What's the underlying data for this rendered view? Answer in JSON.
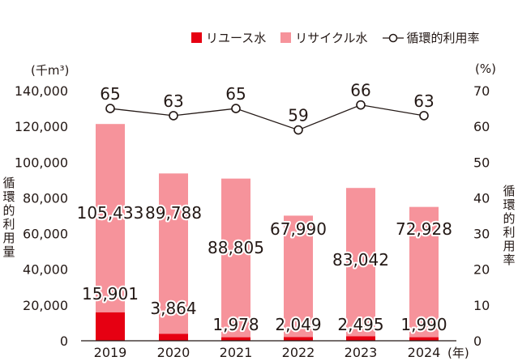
{
  "chart_data": {
    "type": "bar",
    "categories": [
      "2019",
      "2020",
      "2021",
      "2022",
      "2023",
      "2024"
    ],
    "series": [
      {
        "name": "リユース水",
        "type": "bar",
        "axis": "left",
        "stack": "water",
        "color": "#e60012",
        "values": [
          15901,
          3864,
          1978,
          2049,
          2495,
          1990
        ]
      },
      {
        "name": "リサイクル水",
        "type": "bar",
        "axis": "left",
        "stack": "water",
        "color": "#f6939b",
        "values": [
          105433,
          89788,
          88805,
          67990,
          83042,
          72928
        ]
      },
      {
        "name": "循環的利用率",
        "type": "line",
        "axis": "right",
        "color": "#231815",
        "values": [
          65,
          63,
          65,
          59,
          66,
          63
        ]
      }
    ],
    "left_axis": {
      "label": "循環的利用量",
      "unit": "(千m³)",
      "range": [
        0,
        140000
      ],
      "ticks": [
        "0",
        "20,000",
        "40,000",
        "60,000",
        "80,000",
        "100,000",
        "120,000",
        "140,000"
      ]
    },
    "right_axis": {
      "label": "循環的利用率",
      "unit": "(%)",
      "range": [
        0,
        70
      ],
      "ticks": [
        "0",
        "10",
        "20",
        "30",
        "40",
        "50",
        "60",
        "70"
      ]
    },
    "x_unit": "(年)",
    "grid": false,
    "legend_position": "top-right"
  }
}
